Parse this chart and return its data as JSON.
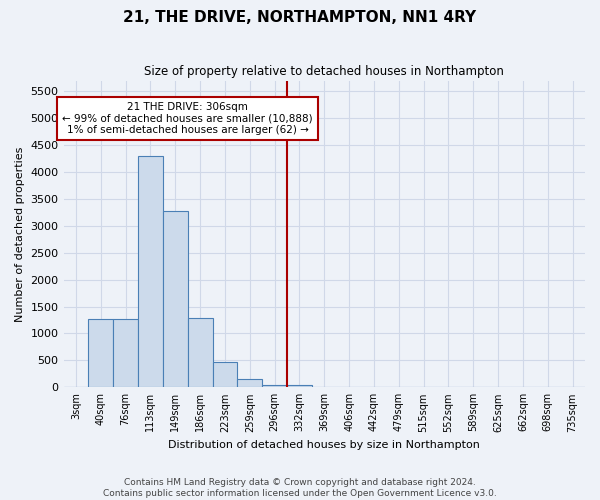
{
  "title": "21, THE DRIVE, NORTHAMPTON, NN1 4RY",
  "subtitle": "Size of property relative to detached houses in Northampton",
  "xlabel": "Distribution of detached houses by size in Northampton",
  "ylabel": "Number of detached properties",
  "bin_labels": [
    "3sqm",
    "40sqm",
    "76sqm",
    "113sqm",
    "149sqm",
    "186sqm",
    "223sqm",
    "259sqm",
    "296sqm",
    "332sqm",
    "369sqm",
    "406sqm",
    "442sqm",
    "479sqm",
    "515sqm",
    "552sqm",
    "589sqm",
    "625sqm",
    "662sqm",
    "698sqm",
    "735sqm"
  ],
  "bar_values": [
    0,
    1270,
    1270,
    4300,
    3280,
    1280,
    470,
    150,
    50,
    50,
    0,
    0,
    0,
    0,
    0,
    0,
    0,
    0,
    0,
    0,
    0
  ],
  "bar_color": "#ccdaeb",
  "bar_edge_color": "#4a7fb5",
  "vline_bin_index": 8,
  "vline_color": "#aa0000",
  "annotation_line1": "21 THE DRIVE: 306sqm",
  "annotation_line2": "← 99% of detached houses are smaller (10,888)",
  "annotation_line3": "1% of semi-detached houses are larger (62) →",
  "annotation_box_color": "#ffffff",
  "annotation_box_edge": "#aa0000",
  "ylim": [
    0,
    5700
  ],
  "yticks": [
    0,
    500,
    1000,
    1500,
    2000,
    2500,
    3000,
    3500,
    4000,
    4500,
    5000,
    5500
  ],
  "footer": "Contains HM Land Registry data © Crown copyright and database right 2024.\nContains public sector information licensed under the Open Government Licence v3.0.",
  "bg_color": "#eef2f8",
  "grid_color": "#d0d8e8"
}
